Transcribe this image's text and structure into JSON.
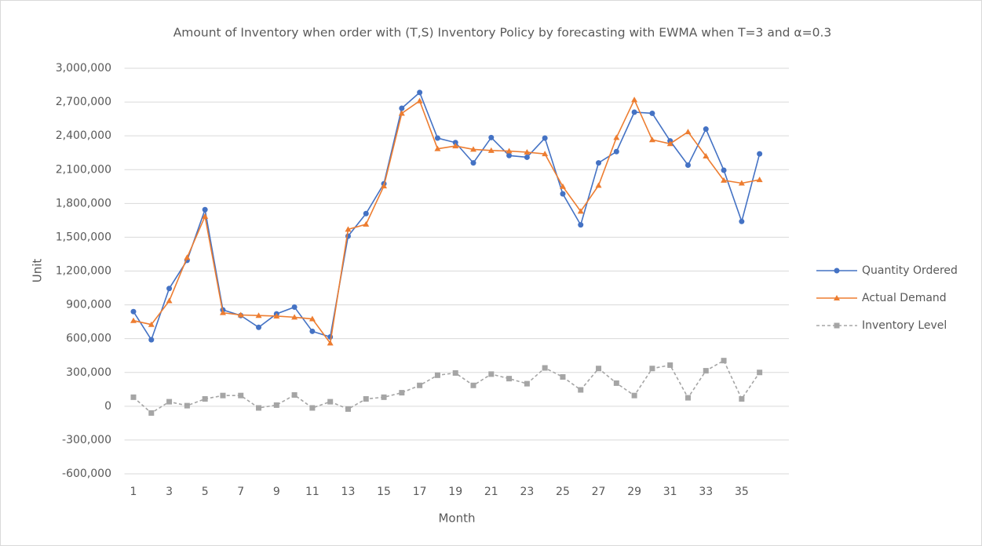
{
  "chart_data": {
    "type": "line",
    "title": "Amount of Inventory when order with (T,S) Inventory Policy by forecasting with EWMA when T=3 and α=0.3",
    "x_label": "Month",
    "y_label": "Unit",
    "categories": [
      1,
      null,
      3,
      null,
      5,
      null,
      7,
      null,
      9,
      null,
      11,
      null,
      13,
      null,
      15,
      null,
      17,
      null,
      19,
      null,
      21,
      null,
      23,
      null,
      25,
      null,
      27,
      null,
      29,
      null,
      31,
      null,
      33,
      null,
      35,
      null
    ],
    "series": [
      {
        "name": "Quantity Ordered",
        "color": "#4472c4",
        "marker": "circle",
        "dashed": false,
        "values": [
          840000,
          590000,
          1045000,
          1295000,
          1745000,
          855000,
          805000,
          700000,
          820000,
          880000,
          665000,
          615000,
          1510000,
          1710000,
          1975000,
          2645000,
          2785000,
          2380000,
          2340000,
          2160000,
          2385000,
          2225000,
          2210000,
          2380000,
          1885000,
          1610000,
          2160000,
          2260000,
          2610000,
          2600000,
          2355000,
          2140000,
          2460000,
          2095000,
          1640000,
          2240000
        ]
      },
      {
        "name": "Actual Demand",
        "color": "#ed7d31",
        "marker": "triangle",
        "dashed": false,
        "values": [
          760000,
          725000,
          935000,
          1320000,
          1685000,
          830000,
          810000,
          805000,
          800000,
          790000,
          775000,
          560000,
          1570000,
          1615000,
          1955000,
          2600000,
          2710000,
          2285000,
          2310000,
          2280000,
          2270000,
          2265000,
          2255000,
          2240000,
          1950000,
          1730000,
          1960000,
          2385000,
          2720000,
          2365000,
          2330000,
          2435000,
          2220000,
          2005000,
          1980000,
          2010000
        ]
      },
      {
        "name": "Inventory Level",
        "color": "#a5a5a5",
        "marker": "square",
        "dashed": true,
        "values": [
          80000,
          -60000,
          40000,
          5000,
          65000,
          95000,
          95000,
          -15000,
          10000,
          100000,
          -15000,
          40000,
          -25000,
          65000,
          80000,
          120000,
          185000,
          275000,
          295000,
          185000,
          285000,
          245000,
          200000,
          340000,
          260000,
          145000,
          335000,
          205000,
          95000,
          335000,
          365000,
          75000,
          315000,
          405000,
          65000,
          300000
        ]
      }
    ],
    "ylim": [
      -600000,
      3000000
    ],
    "yticks": [
      {
        "value": -600000,
        "label": "-600,000"
      },
      {
        "value": -300000,
        "label": "-300,000"
      },
      0,
      {
        "value": 300000,
        "label": "300,000"
      },
      {
        "value": 600000,
        "label": "600,000"
      },
      {
        "value": 900000,
        "label": "900,000"
      },
      {
        "value": 1200000,
        "label": "1,200,000"
      },
      {
        "value": 1500000,
        "label": "1,500,000"
      },
      {
        "value": 1800000,
        "label": "1,800,000"
      },
      {
        "value": 2100000,
        "label": "2,100,000"
      },
      {
        "value": 2400000,
        "label": "2,400,000"
      },
      {
        "value": 2700000,
        "label": "2,700,000"
      },
      {
        "value": 3000000,
        "label": "3,000,000"
      }
    ],
    "grid": true,
    "legend": "right"
  }
}
